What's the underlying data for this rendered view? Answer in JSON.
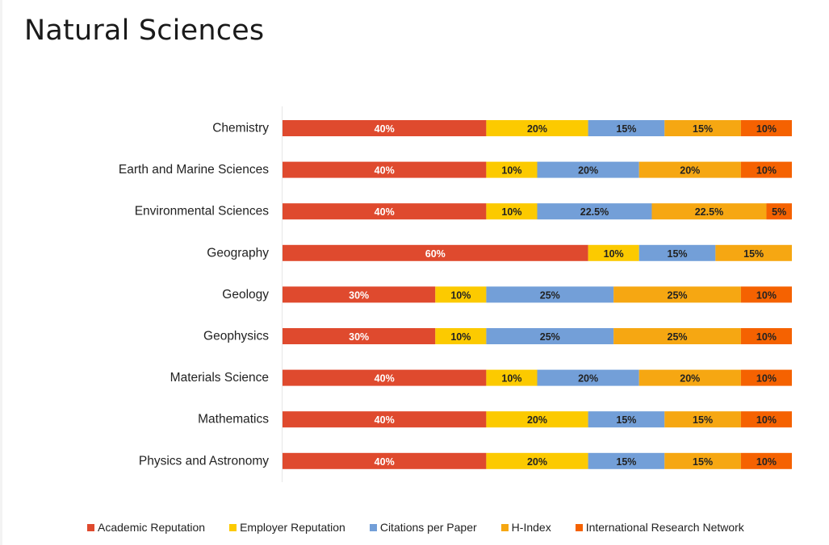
{
  "page": {
    "title": "Natural Sciences"
  },
  "chart_data": {
    "type": "bar",
    "orientation": "horizontal",
    "stacked": true,
    "title": "Natural Sciences",
    "xlabel": "",
    "ylabel": "",
    "xlim": [
      0,
      100
    ],
    "unit": "%",
    "grid": false,
    "legend_position": "bottom",
    "categories": [
      "Chemistry",
      "Earth and Marine Sciences",
      "Environmental Sciences",
      "Geography",
      "Geology",
      "Geophysics",
      "Materials Science",
      "Mathematics",
      "Physics and Astronomy"
    ],
    "series": [
      {
        "name": "Academic Reputation",
        "color": "#df4a2e",
        "label_color": "#ffffff",
        "values": [
          40,
          40,
          40,
          60,
          30,
          30,
          40,
          40,
          40
        ]
      },
      {
        "name": "Employer Reputation",
        "color": "#fcca00",
        "label_color": "#222222",
        "values": [
          20,
          10,
          10,
          10,
          10,
          10,
          10,
          20,
          20
        ]
      },
      {
        "name": "Citations per Paper",
        "color": "#739fd8",
        "label_color": "#222222",
        "values": [
          15,
          20,
          22.5,
          15,
          25,
          25,
          20,
          15,
          15
        ]
      },
      {
        "name": "H-Index",
        "color": "#f6a712",
        "label_color": "#222222",
        "values": [
          15,
          20,
          22.5,
          15,
          25,
          25,
          20,
          15,
          15
        ]
      },
      {
        "name": "International Research Network",
        "color": "#f56201",
        "label_color": "#222222",
        "values": [
          10,
          10,
          5,
          0,
          10,
          10,
          10,
          10,
          10
        ]
      }
    ]
  }
}
